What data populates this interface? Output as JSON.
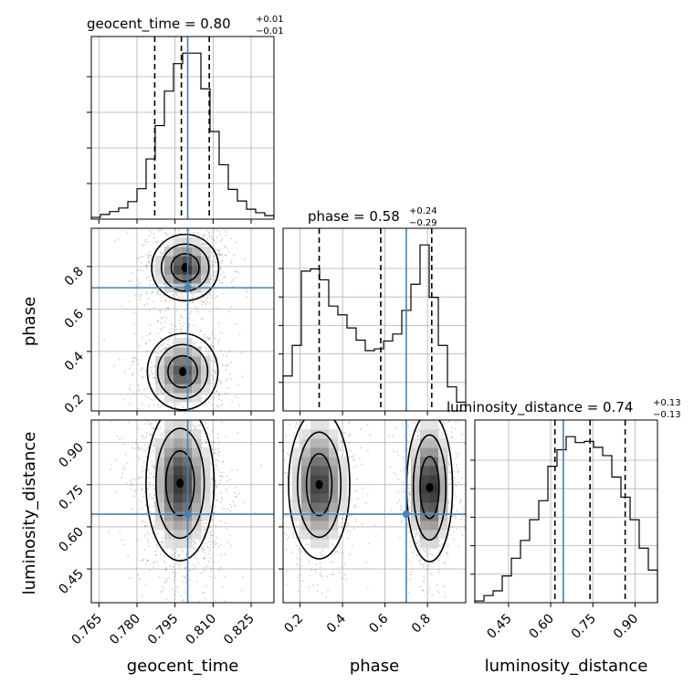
{
  "chart_data": {
    "type": "corner",
    "parameters": [
      {
        "key": "geocent_time",
        "label": "geocent_time",
        "title": "geocent_time = 0.80",
        "median": 0.8,
        "plus": "+0.01",
        "minus": "−0.01",
        "range": [
          0.762,
          0.834
        ],
        "ticks": [
          "0.765",
          "0.780",
          "0.795",
          "0.810",
          "0.825"
        ],
        "tick_values": [
          0.765,
          0.78,
          0.795,
          0.81,
          0.825
        ],
        "quantiles": [
          0.787,
          0.7975,
          0.8085
        ],
        "truth": 0.8
      },
      {
        "key": "phase",
        "label": "phase",
        "title": "phase = 0.58",
        "median": 0.58,
        "plus": "+0.24",
        "minus": "−0.29",
        "range": [
          0.12,
          0.98
        ],
        "ticks": [
          "0.2",
          "0.4",
          "0.6",
          "0.8"
        ],
        "tick_values": [
          0.2,
          0.4,
          0.6,
          0.8
        ],
        "quantiles": [
          0.29,
          0.58,
          0.82
        ],
        "truth": 0.7
      },
      {
        "key": "luminosity_distance",
        "label": "luminosity_distance",
        "title": "luminosity_distance = 0.74",
        "median": 0.74,
        "plus": "+0.13",
        "minus": "−0.13",
        "range": [
          0.33,
          0.98
        ],
        "ticks": [
          "0.45",
          "0.60",
          "0.75",
          "0.90"
        ],
        "tick_values": [
          0.45,
          0.6,
          0.75,
          0.9
        ],
        "quantiles": [
          0.615,
          0.74,
          0.865
        ],
        "truth": 0.645
      }
    ],
    "histograms": {
      "geocent_time": [
        0.03,
        0.08,
        0.13,
        0.19,
        0.3,
        0.52,
        1.03,
        1.6,
        2.19,
        2.66,
        2.84,
        2.84,
        2.23,
        1.5,
        0.93,
        0.51,
        0.31,
        0.17,
        0.11,
        0.06
      ],
      "phase": [
        0.8,
        1.5,
        3.2,
        3.25,
        3.0,
        2.4,
        2.2,
        1.9,
        1.62,
        1.38,
        1.42,
        1.6,
        1.76,
        2.3,
        2.9,
        3.8,
        2.6,
        1.5,
        0.55,
        0.2
      ],
      "luminosity_distance": [
        0.03,
        0.12,
        0.2,
        0.45,
        0.75,
        1.05,
        1.4,
        1.72,
        2.3,
        2.58,
        2.8,
        2.7,
        2.72,
        2.62,
        2.48,
        2.12,
        1.78,
        1.4,
        0.92,
        0.55
      ]
    },
    "joint": [
      {
        "x": "geocent_time",
        "y": "phase",
        "modes": [
          {
            "cx": 0.799,
            "cy": 0.795,
            "sx": 0.0055,
            "sy": 0.065,
            "w": 1.0
          },
          {
            "cx": 0.798,
            "cy": 0.305,
            "sx": 0.0058,
            "sy": 0.075,
            "w": 0.85
          }
        ]
      },
      {
        "x": "geocent_time",
        "y": "luminosity_distance",
        "modes": [
          {
            "cx": 0.797,
            "cy": 0.755,
            "sx": 0.0056,
            "sy": 0.115,
            "w": 1.0
          }
        ]
      },
      {
        "x": "phase",
        "y": "luminosity_distance",
        "modes": [
          {
            "cx": 0.29,
            "cy": 0.75,
            "sx": 0.06,
            "sy": 0.11,
            "w": 0.9
          },
          {
            "cx": 0.81,
            "cy": 0.74,
            "sx": 0.045,
            "sy": 0.11,
            "w": 1.0
          }
        ]
      }
    ],
    "truth_color": "#4682b4",
    "quantile_style": "dashed"
  }
}
